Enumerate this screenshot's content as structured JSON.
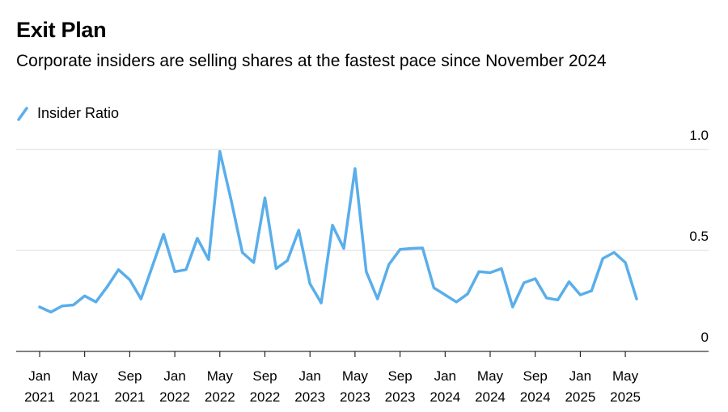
{
  "chart_data": {
    "type": "line",
    "title": "Exit Plan",
    "subtitle": "Corporate insiders are selling shares at the fastest pace since November 2024",
    "xlabel": "",
    "ylabel": "",
    "ylim": [
      0,
      1.0
    ],
    "yticks": [
      {
        "value": 0,
        "label": "0"
      },
      {
        "value": 0.5,
        "label": "0.5"
      },
      {
        "value": 1.0,
        "label": "1.0"
      }
    ],
    "xticks": [
      {
        "index": 0,
        "label1": "Jan",
        "label2": "2021"
      },
      {
        "index": 4,
        "label1": "May",
        "label2": "2021"
      },
      {
        "index": 8,
        "label1": "Sep",
        "label2": "2021"
      },
      {
        "index": 12,
        "label1": "Jan",
        "label2": "2022"
      },
      {
        "index": 16,
        "label1": "May",
        "label2": "2022"
      },
      {
        "index": 20,
        "label1": "Sep",
        "label2": "2022"
      },
      {
        "index": 24,
        "label1": "Jan",
        "label2": "2023"
      },
      {
        "index": 28,
        "label1": "May",
        "label2": "2023"
      },
      {
        "index": 32,
        "label1": "Sep",
        "label2": "2023"
      },
      {
        "index": 36,
        "label1": "Jan",
        "label2": "2024"
      },
      {
        "index": 40,
        "label1": "May",
        "label2": "2024"
      },
      {
        "index": 44,
        "label1": "Sep",
        "label2": "2024"
      },
      {
        "index": 48,
        "label1": "Jan",
        "label2": "2025"
      },
      {
        "index": 52,
        "label1": "May",
        "label2": "2025"
      }
    ],
    "x_range": [
      0,
      54
    ],
    "grid": true,
    "legend_position": "top-left",
    "series": [
      {
        "name": "Insider Ratio",
        "color": "#5aaeea",
        "x": [
          "2021-01",
          "2021-02",
          "2021-03",
          "2021-04",
          "2021-05",
          "2021-06",
          "2021-07",
          "2021-08",
          "2021-09",
          "2021-10",
          "2021-11",
          "2021-12",
          "2022-01",
          "2022-02",
          "2022-03",
          "2022-04",
          "2022-05",
          "2022-06",
          "2022-07",
          "2022-08",
          "2022-09",
          "2022-10",
          "2022-11",
          "2022-12",
          "2023-01",
          "2023-02",
          "2023-03",
          "2023-04",
          "2023-05",
          "2023-06",
          "2023-07",
          "2023-08",
          "2023-09",
          "2023-10",
          "2023-11",
          "2023-12",
          "2024-01",
          "2024-02",
          "2024-03",
          "2024-04",
          "2024-05",
          "2024-06",
          "2024-07",
          "2024-08",
          "2024-09",
          "2024-10",
          "2024-11",
          "2024-12",
          "2025-01",
          "2025-02",
          "2025-03",
          "2025-04",
          "2025-05",
          "2025-06"
        ],
        "values": [
          0.22,
          0.195,
          0.225,
          0.23,
          0.275,
          0.245,
          0.32,
          0.405,
          0.355,
          0.26,
          0.42,
          0.58,
          0.395,
          0.405,
          0.56,
          0.455,
          0.99,
          0.75,
          0.49,
          0.44,
          0.76,
          0.41,
          0.45,
          0.6,
          0.335,
          0.24,
          0.625,
          0.51,
          0.905,
          0.395,
          0.26,
          0.43,
          0.505,
          0.51,
          0.512,
          0.315,
          0.28,
          0.245,
          0.285,
          0.395,
          0.39,
          0.41,
          0.22,
          0.34,
          0.36,
          0.265,
          0.255,
          0.345,
          0.28,
          0.3,
          0.46,
          0.49,
          0.44,
          0.26
        ]
      }
    ]
  }
}
